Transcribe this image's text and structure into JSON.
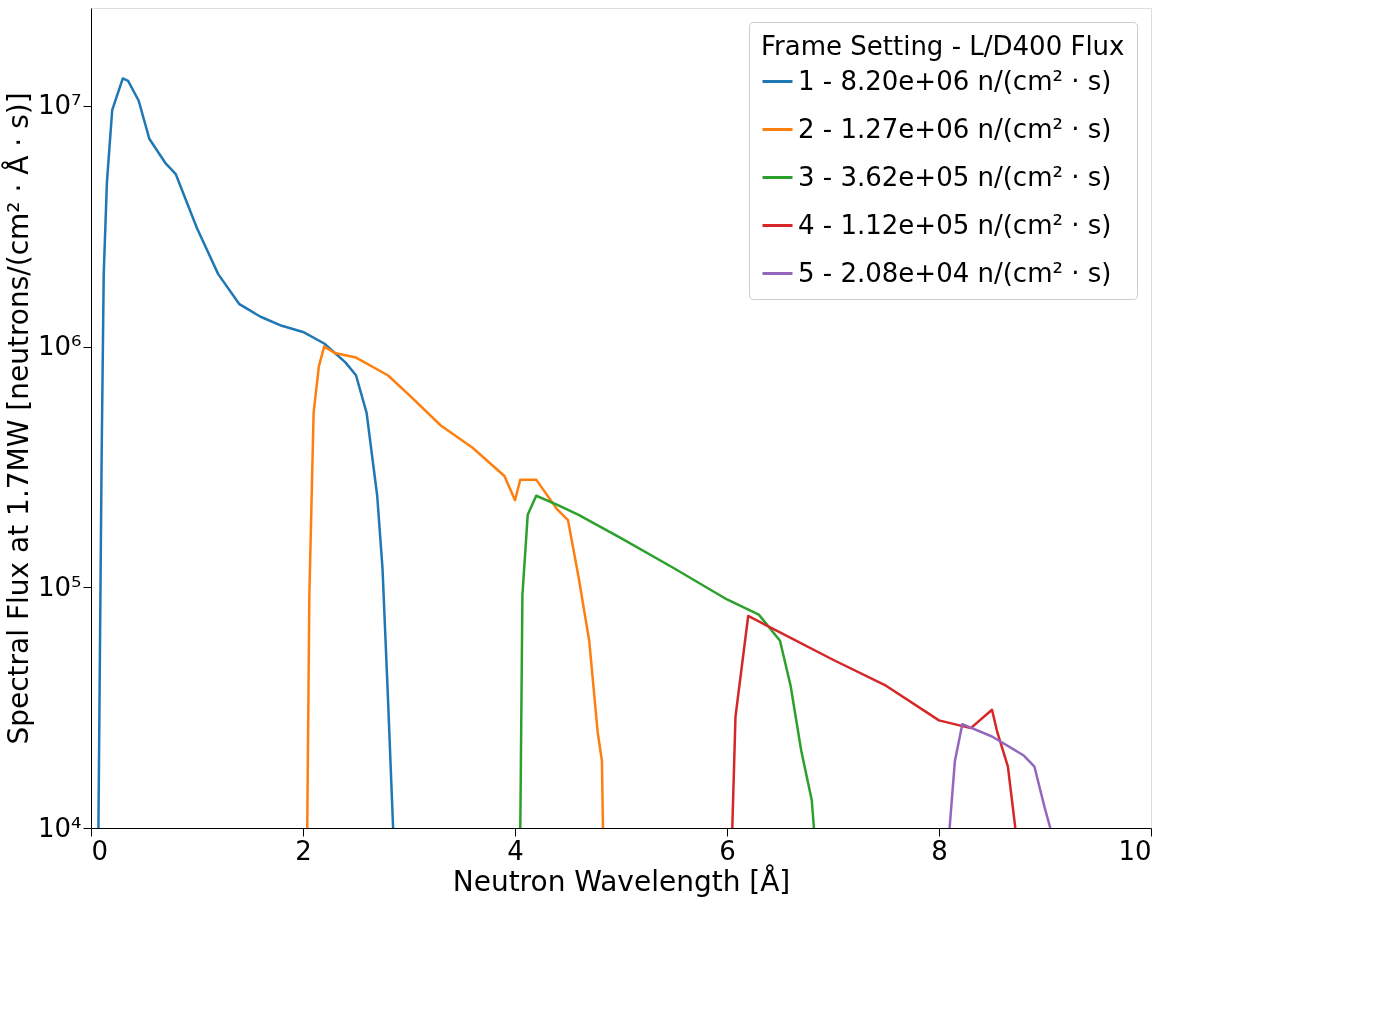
{
  "chart_data": {
    "type": "line",
    "xlabel": "Neutron Wavelength [Å]",
    "ylabel": "Spectral Flux at 1.7MW [neutrons/(cm² · Å · s)]",
    "legend_title": "Frame Setting - L/D400 Flux",
    "xlim": [
      0,
      10
    ],
    "xticks": [
      0,
      2,
      4,
      6,
      8,
      10
    ],
    "ylim": [
      10000,
      25500000
    ],
    "yticks": [
      {
        "value": 10000,
        "label": "10⁴"
      },
      {
        "value": 100000,
        "label": "10⁵"
      },
      {
        "value": 1000000,
        "label": "10⁶"
      },
      {
        "value": 10000000,
        "label": "10⁷"
      }
    ],
    "log": "y",
    "grid": false,
    "legend": "top right",
    "marker": "none",
    "line_style": "solid",
    "series": [
      {
        "name": "1 - 8.20e+06 n/(cm² · s)",
        "color": "#1f77b4",
        "x": [
          0.07,
          0.1,
          0.12,
          0.15,
          0.2,
          0.3,
          0.35,
          0.45,
          0.55,
          0.7,
          0.8,
          1.0,
          1.2,
          1.4,
          1.6,
          1.8,
          2.0,
          2.2,
          2.4,
          2.5,
          2.6,
          2.7,
          2.75,
          2.8,
          2.85
        ],
        "values": [
          10000,
          340000,
          2000000,
          4800000,
          9600000,
          13000000,
          12700000,
          10500000,
          7300000,
          5800000,
          5200000,
          3100000,
          2000000,
          1500000,
          1330000,
          1220000,
          1150000,
          1030000,
          860000,
          760000,
          530000,
          240000,
          120000,
          36000,
          10000
        ]
      },
      {
        "name": "2 - 1.27e+06 n/(cm² · s)",
        "color": "#ff7f0e",
        "x": [
          2.04,
          2.06,
          2.1,
          2.15,
          2.2,
          2.3,
          2.5,
          2.8,
          3.0,
          3.3,
          3.6,
          3.9,
          4.0,
          4.05,
          4.2,
          4.4,
          4.5,
          4.6,
          4.7,
          4.78,
          4.82,
          4.83
        ],
        "values": [
          10000,
          93000,
          530000,
          830000,
          1000000,
          940000,
          900000,
          760000,
          630000,
          470000,
          380000,
          290000,
          230000,
          280000,
          280000,
          210000,
          190000,
          110000,
          60000,
          25000,
          19000,
          10000
        ]
      },
      {
        "name": "3 - 3.62e+05 n/(cm² · s)",
        "color": "#2ca02c",
        "x": [
          4.05,
          4.07,
          4.12,
          4.2,
          4.4,
          4.6,
          5.0,
          5.5,
          6.0,
          6.3,
          6.5,
          6.6,
          6.7,
          6.8,
          6.82
        ],
        "values": [
          10000,
          93000,
          200000,
          240000,
          220000,
          200000,
          160000,
          120000,
          89000,
          77000,
          60000,
          39000,
          21000,
          13000,
          10000
        ]
      },
      {
        "name": "4 - 1.12e+05 n/(cm² · s)",
        "color": "#d62728",
        "x": [
          6.05,
          6.08,
          6.2,
          6.5,
          7.0,
          7.5,
          8.0,
          8.3,
          8.5,
          8.55,
          8.65,
          8.72
        ],
        "values": [
          10000,
          29000,
          76000,
          65000,
          50000,
          39000,
          28000,
          26000,
          31000,
          25000,
          18000,
          10000
        ]
      },
      {
        "name": "5 - 2.08e+04 n/(cm² · s)",
        "color": "#9467bd",
        "x": [
          8.1,
          8.15,
          8.22,
          8.5,
          8.8,
          8.9,
          9.0,
          9.05
        ],
        "values": [
          10000,
          19000,
          27000,
          24000,
          20000,
          18000,
          12000,
          10000
        ]
      }
    ]
  }
}
